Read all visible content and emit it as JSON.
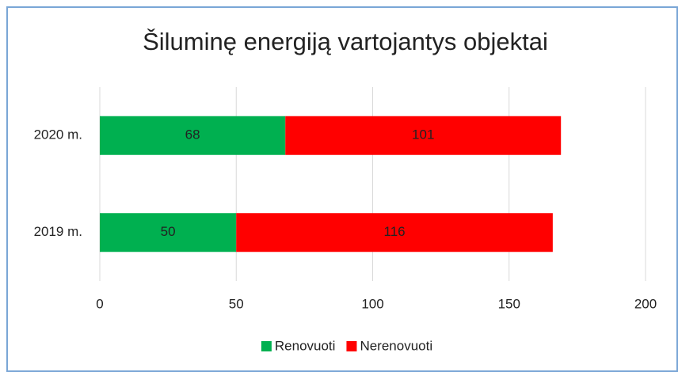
{
  "chart_data": {
    "type": "stacked-bar-horizontal",
    "title": "Šiluminę energiją vartojantys objektai",
    "categories": [
      "2020 m.",
      "2019 m."
    ],
    "series": [
      {
        "name": "Renovuoti",
        "color": "#00b050",
        "values": [
          68,
          50
        ]
      },
      {
        "name": "Nerenovuoti",
        "color": "#ff0000",
        "values": [
          101,
          116
        ]
      }
    ],
    "xlim": [
      0,
      200
    ],
    "xticks": [
      0,
      50,
      100,
      150,
      200
    ],
    "grid": true,
    "legend": "bottom"
  }
}
